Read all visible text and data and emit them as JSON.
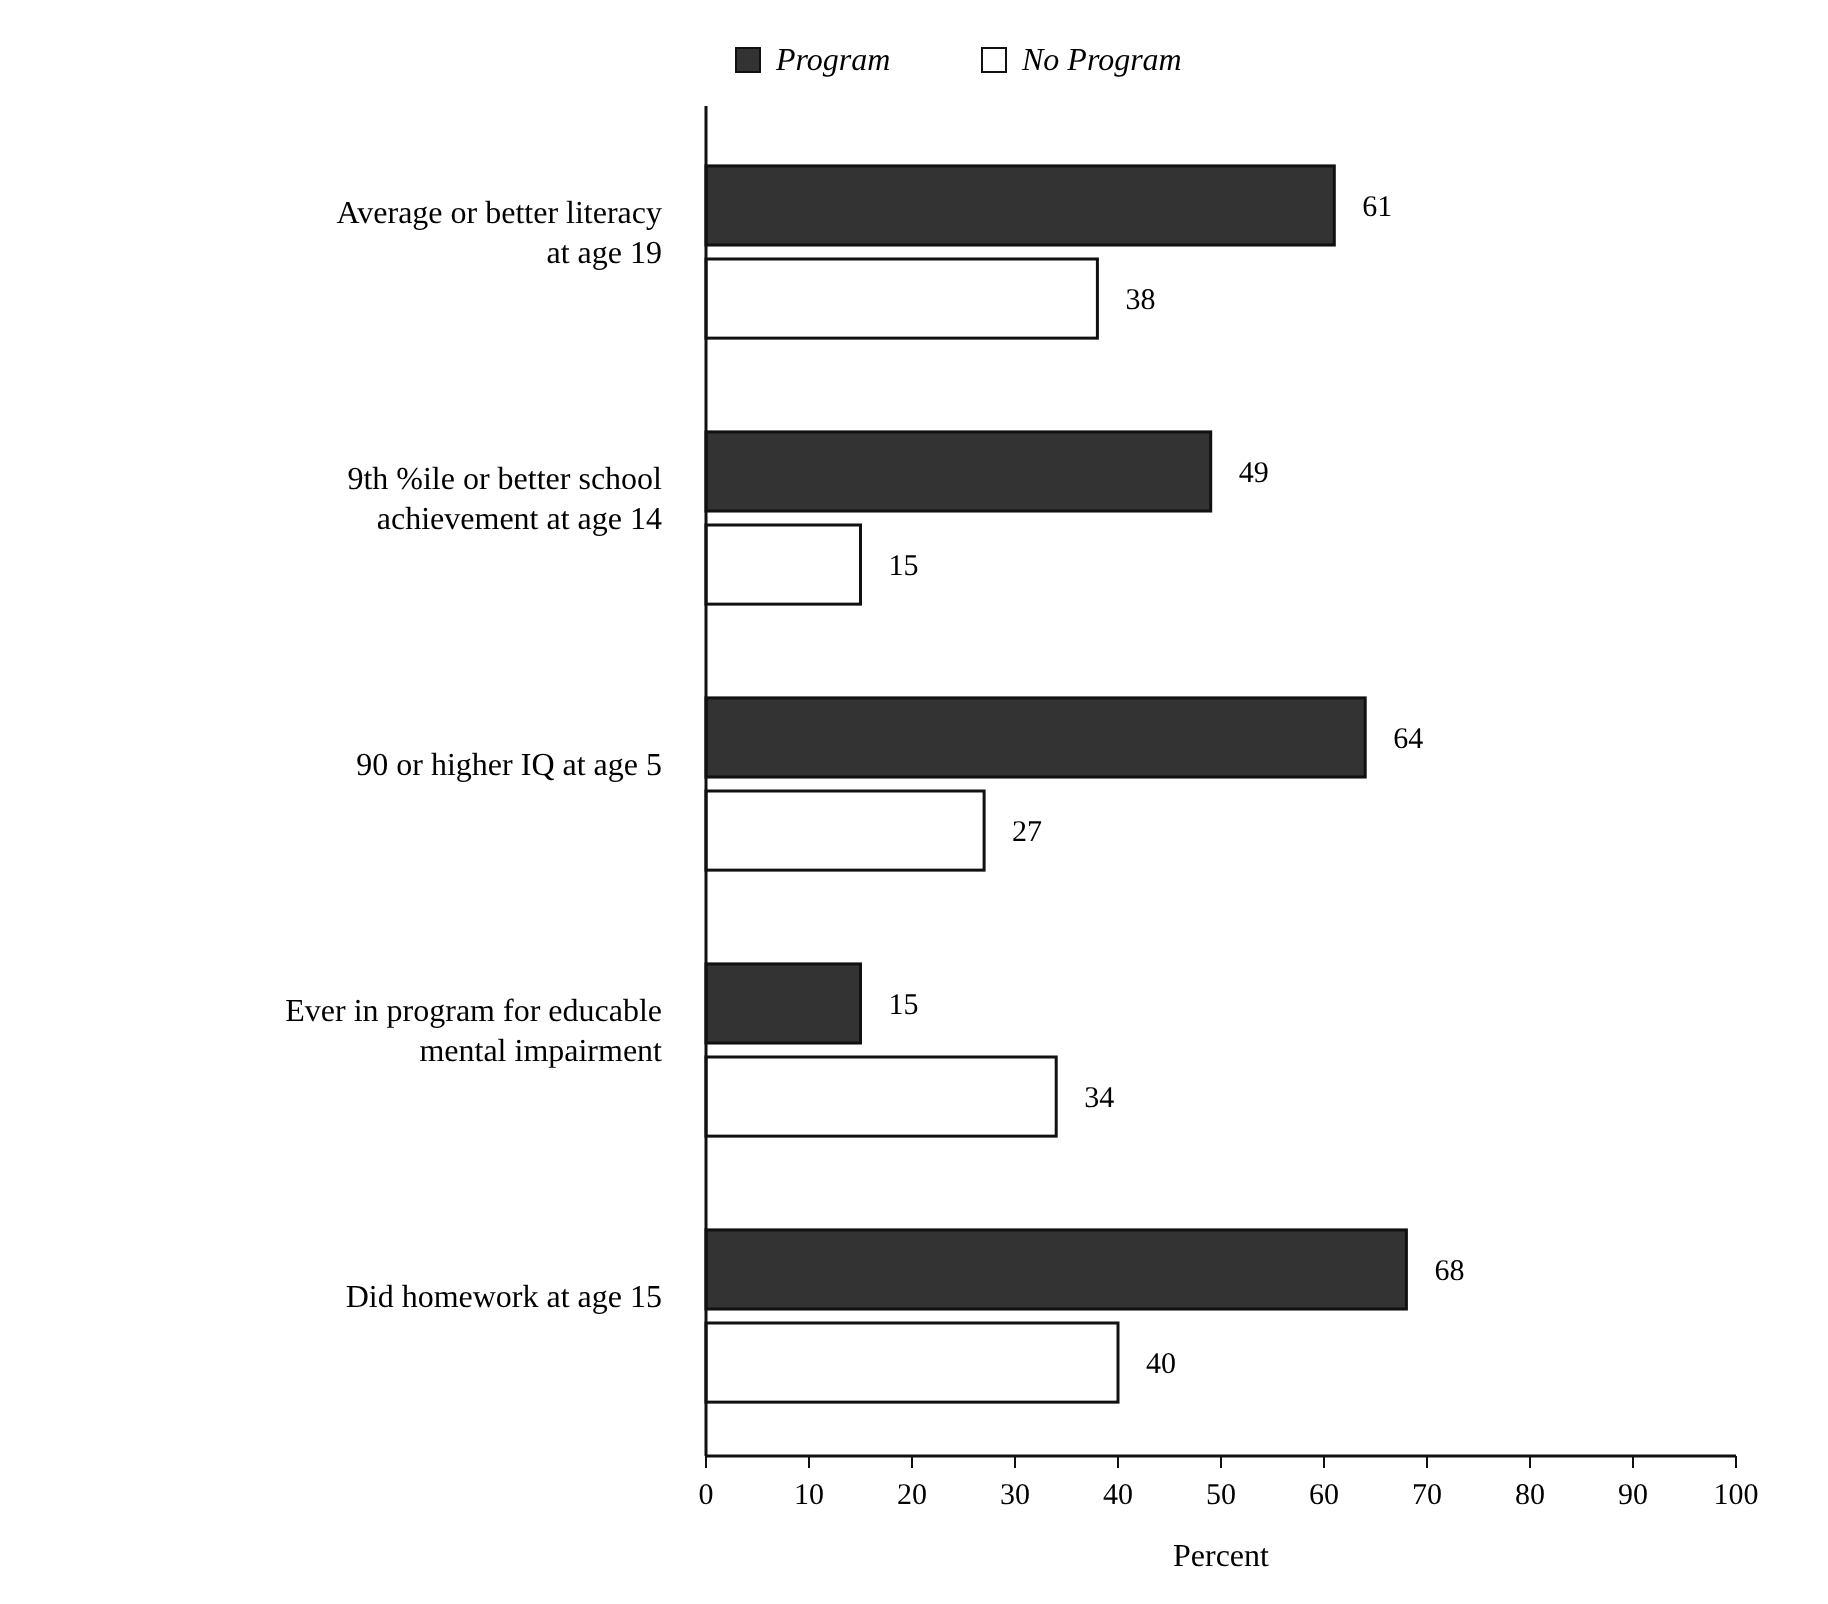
{
  "chart_data": {
    "type": "bar",
    "orientation": "horizontal",
    "xlabel": "Percent",
    "categories": [
      "Average or better literacy at age 19",
      "9th %ile or better school achievement at age 14",
      "90 or higher IQ at age 5",
      "Ever in program for educable mental impairment",
      "Did homework at age 15"
    ],
    "series": [
      {
        "name": "Program",
        "color": "#333333",
        "values": [
          61,
          49,
          64,
          15,
          68
        ]
      },
      {
        "name": "No Program",
        "color": "#ffffff",
        "values": [
          38,
          15,
          27,
          34,
          40
        ]
      }
    ],
    "xlim": [
      0,
      100
    ],
    "xticks": [
      0,
      10,
      20,
      30,
      40,
      50,
      60,
      70,
      80,
      90,
      100
    ],
    "data_labels": true,
    "legend": "top",
    "grid": false
  }
}
